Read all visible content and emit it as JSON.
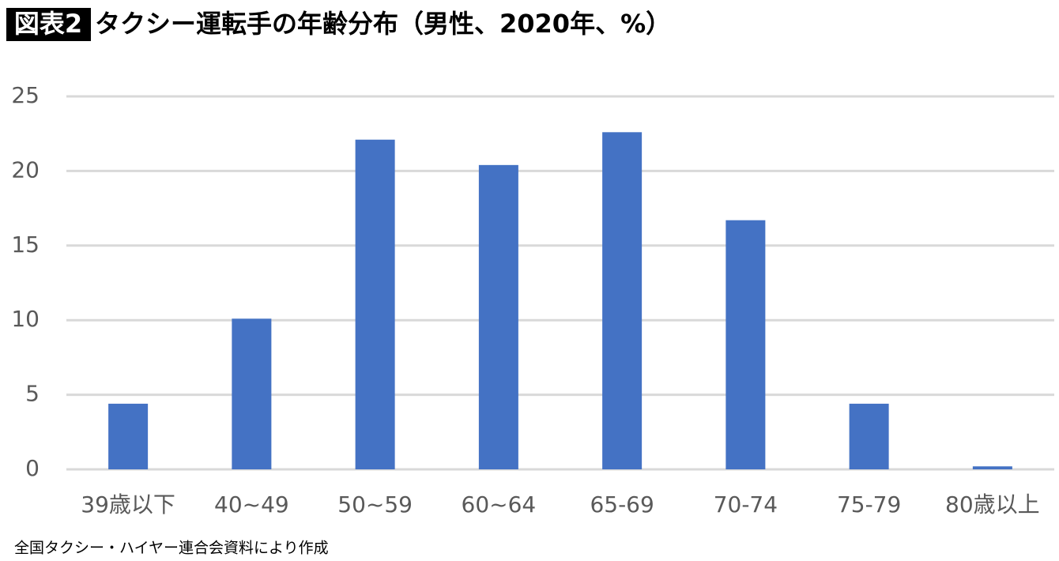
{
  "chart_data": {
    "type": "bar",
    "title_badge": "図表2",
    "title": "タクシー運転手の年齢分布（男性、2020年、%）",
    "source": "全国タクシー・ハイヤー連合会資料により作成",
    "categories": [
      "39歳以下",
      "40~49",
      "50~59",
      "60~64",
      "65-69",
      "70-74",
      "75-79",
      "80歳以上"
    ],
    "values": [
      4.4,
      10.1,
      22.1,
      20.4,
      22.6,
      16.7,
      4.4,
      0.2
    ],
    "color": "#4472c4",
    "ylim": [
      0,
      25
    ],
    "yticks": [
      0,
      5,
      10,
      15,
      20,
      25
    ],
    "grid": true
  }
}
